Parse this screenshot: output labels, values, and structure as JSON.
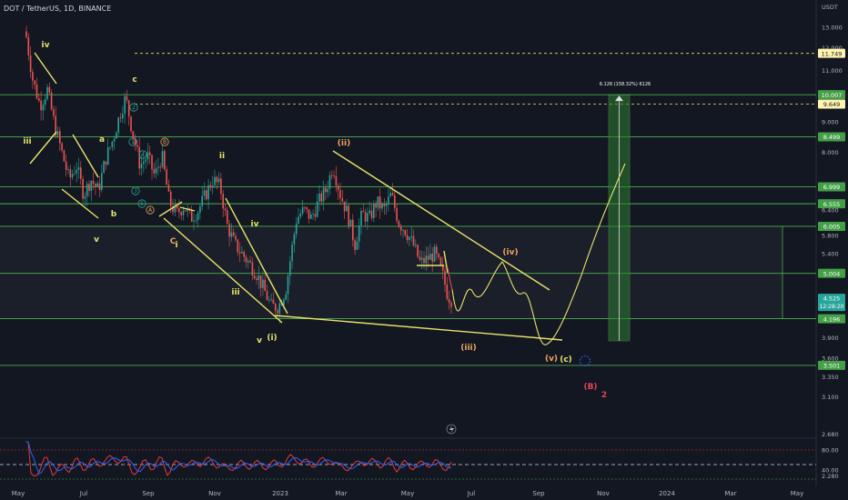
{
  "symbol": "DOT / TetherUS, 1D, BINANCE",
  "currency": "USDT",
  "price_axis": {
    "ticks": [
      "13.000",
      "12.000",
      "11.000",
      "10.000",
      "9.000",
      "8.000",
      "7.000",
      "6.400",
      "5.800",
      "5.400",
      "5.000",
      "4.400",
      "3.900",
      "3.600",
      "3.350",
      "3.100",
      "2.680",
      "2.280"
    ]
  },
  "time_axis": {
    "labels": [
      "May",
      "Jul",
      "Sep",
      "Nov",
      "2023",
      "Mar",
      "May",
      "Jul",
      "Sep",
      "Nov",
      "2024",
      "Mar",
      "May"
    ]
  },
  "horizontal_levels": [
    {
      "label": "11.749",
      "style": "dashed"
    },
    {
      "label": "10.007",
      "style": "solid"
    },
    {
      "label": "9.649",
      "style": "dashed"
    },
    {
      "label": "8.499",
      "style": "solid"
    },
    {
      "label": "6.999",
      "style": "solid"
    },
    {
      "label": "6.555",
      "style": "solid"
    },
    {
      "label": "6.005",
      "style": "solid"
    },
    {
      "label": "5.004",
      "style": "solid"
    },
    {
      "label": "4.196",
      "style": "solid"
    },
    {
      "label": "3.501",
      "style": "solid"
    }
  ],
  "current_price": {
    "value": "4.525",
    "countdown": "12:28:20",
    "color": "#26a69a"
  },
  "target_box_label": "6.126 (158.32%) 6126",
  "wave_labels": [
    {
      "text": "iv",
      "color": "#e8e36a"
    },
    {
      "text": "iii",
      "color": "#e8e36a"
    },
    {
      "text": "c",
      "color": "#e8e36a"
    },
    {
      "text": "a",
      "color": "#e8e36a"
    },
    {
      "text": "b",
      "color": "#e8e36a"
    },
    {
      "text": "v",
      "color": "#e8e36a"
    },
    {
      "text": "ii",
      "color": "#e8e36a"
    },
    {
      "text": "i",
      "color": "#e8e36a"
    },
    {
      "text": "iv",
      "color": "#e8e36a"
    },
    {
      "text": "iii",
      "color": "#e8e36a"
    },
    {
      "text": "v",
      "color": "#e8e36a"
    },
    {
      "text": "(i)",
      "color": "#e8e36a"
    },
    {
      "text": "(ii)",
      "color": "#f0a35e"
    },
    {
      "text": "(iii)",
      "color": "#f0a35e"
    },
    {
      "text": "(iv)",
      "color": "#f0a35e"
    },
    {
      "text": "(v)",
      "color": "#f0a35e"
    },
    {
      "text": "(c)",
      "color": "#e8e36a"
    },
    {
      "text": "(B)",
      "color": "#e0455b"
    },
    {
      "text": "2",
      "color": "#e0455b"
    },
    {
      "text": "C",
      "color": "#f0a35e"
    }
  ],
  "circled_labels": [
    "2",
    "1",
    "4",
    "3",
    "5",
    "A",
    "B"
  ],
  "oscillator": {
    "ticks": [
      "80.00",
      "40.00"
    ],
    "colors": {
      "rsi": "#e53935",
      "signal": "#2962ff"
    }
  },
  "colors": {
    "background": "#131722",
    "level": "#4caf50",
    "wedge": "#e8e36a",
    "bull": "#26a69a",
    "bear": "#ef5350",
    "target": "#1b5e20",
    "projection": "#e8e36a"
  },
  "chart_data": {
    "type": "candlestick",
    "title": "DOT / TetherUS, 1D, BINANCE",
    "ylabel": "USDT",
    "y_scale": "log",
    "ylim": [
      2.2,
      14.5
    ],
    "series": [
      {
        "name": "DOT / TetherUS",
        "x": [
          "2022-05",
          "2022-06",
          "2022-07",
          "2022-08",
          "2022-09",
          "2022-10",
          "2022-11",
          "2022-12",
          "2023-01",
          "2023-02",
          "2023-03",
          "2023-04",
          "2023-05",
          "2023-06"
        ],
        "values": [
          11.5,
          8.0,
          6.8,
          8.8,
          6.5,
          6.2,
          5.6,
          4.5,
          5.9,
          7.2,
          6.3,
          6.5,
          5.3,
          4.5
        ]
      }
    ],
    "horizontal_levels": [
      11.749,
      10.007,
      9.649,
      8.499,
      6.999,
      6.555,
      6.005,
      5.004,
      4.196,
      3.501
    ],
    "current_price": 4.525
  }
}
